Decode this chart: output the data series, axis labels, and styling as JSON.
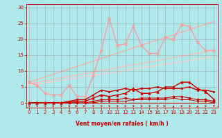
{
  "xlabel": "Vent moyen/en rafales ( km/h )",
  "bg_color": "#aee8e8",
  "grid_color": "#999999",
  "x_ticks": [
    0,
    1,
    2,
    3,
    4,
    5,
    6,
    7,
    8,
    9,
    10,
    11,
    12,
    13,
    14,
    15,
    16,
    17,
    18,
    19,
    20,
    21,
    22,
    23
  ],
  "y_ticks": [
    0,
    5,
    10,
    15,
    20,
    25,
    30
  ],
  "xlim": [
    -0.3,
    23.5
  ],
  "ylim": [
    -1.5,
    31
  ],
  "diag1": {
    "x": [
      0,
      23
    ],
    "y": [
      6.5,
      25.5
    ],
    "color": "#ffaaaa",
    "lw": 0.9
  },
  "diag2": {
    "x": [
      0,
      23
    ],
    "y": [
      6.0,
      16.5
    ],
    "color": "#ffbbbb",
    "lw": 0.9
  },
  "diag3": {
    "x": [
      0,
      23
    ],
    "y": [
      5.5,
      14.5
    ],
    "color": "#ffcccc",
    "lw": 0.9
  },
  "line_rafales": {
    "x": [
      0,
      1,
      2,
      3,
      4,
      5,
      6,
      7,
      8,
      9,
      10,
      11,
      12,
      13,
      14,
      15,
      16,
      17,
      18,
      19,
      20,
      21,
      22,
      23
    ],
    "y": [
      6.5,
      5.5,
      3.0,
      2.5,
      2.5,
      5.5,
      2.0,
      2.0,
      8.5,
      16.5,
      26.5,
      18.0,
      18.5,
      24.0,
      18.0,
      15.5,
      15.5,
      20.5,
      20.0,
      24.5,
      24.0,
      19.0,
      16.5,
      16.5
    ],
    "color": "#ff9999",
    "lw": 0.9,
    "marker": "x",
    "ms": 3
  },
  "line_moyen": {
    "x": [
      0,
      1,
      2,
      3,
      4,
      5,
      6,
      7,
      8,
      9,
      10,
      11,
      12,
      13,
      14,
      15,
      16,
      17,
      18,
      19,
      20,
      21,
      22,
      23
    ],
    "y": [
      0.0,
      0.0,
      0.0,
      0.0,
      0.0,
      0.2,
      0.5,
      0.5,
      1.5,
      2.5,
      2.0,
      2.5,
      3.0,
      4.5,
      3.0,
      3.0,
      3.5,
      5.0,
      5.0,
      6.5,
      6.5,
      4.5,
      3.5,
      1.2
    ],
    "color": "#cc0000",
    "lw": 1.0,
    "marker": "^",
    "ms": 2.5
  },
  "line_max": {
    "x": [
      0,
      1,
      2,
      3,
      4,
      5,
      6,
      7,
      8,
      9,
      10,
      11,
      12,
      13,
      14,
      15,
      16,
      17,
      18,
      19,
      20,
      21,
      22,
      23
    ],
    "y": [
      0.0,
      0.0,
      0.0,
      0.0,
      0.0,
      0.5,
      1.0,
      1.0,
      2.5,
      4.0,
      3.5,
      4.0,
      4.5,
      4.0,
      4.5,
      4.5,
      5.0,
      4.5,
      4.5,
      4.5,
      5.0,
      4.0,
      4.0,
      3.5
    ],
    "color": "#cc0000",
    "lw": 1.0,
    "marker": "s",
    "ms": 2.0
  },
  "line_min": {
    "x": [
      0,
      1,
      2,
      3,
      4,
      5,
      6,
      7,
      8,
      9,
      10,
      11,
      12,
      13,
      14,
      15,
      16,
      17,
      18,
      19,
      20,
      21,
      22,
      23
    ],
    "y": [
      0.0,
      0.0,
      0.0,
      0.0,
      0.0,
      0.0,
      0.0,
      0.0,
      0.5,
      1.0,
      1.0,
      1.0,
      1.5,
      1.0,
      1.5,
      1.5,
      1.5,
      1.5,
      2.0,
      2.0,
      1.5,
      1.0,
      1.0,
      0.5
    ],
    "color": "#cc0000",
    "lw": 0.8,
    "marker": "D",
    "ms": 1.8
  },
  "line_flat1": {
    "x": [
      0,
      1,
      2,
      3,
      4,
      5,
      6,
      7,
      8,
      9,
      10,
      11,
      12,
      13,
      14,
      15,
      16,
      17,
      18,
      19,
      20,
      21,
      22,
      23
    ],
    "y": [
      0.0,
      0.0,
      0.0,
      0.0,
      0.0,
      0.0,
      0.0,
      0.0,
      0.0,
      0.5,
      0.5,
      0.5,
      0.5,
      1.0,
      1.0,
      1.0,
      1.0,
      1.0,
      1.5,
      1.0,
      1.0,
      0.5,
      0.5,
      0.0
    ],
    "color": "#cc0000",
    "lw": 0.7,
    "marker": "v",
    "ms": 1.8
  },
  "line_zero": {
    "x": [
      0,
      23
    ],
    "y": [
      0.0,
      0.0
    ],
    "color": "#cc0000",
    "lw": 0.8
  },
  "wind_arrows": {
    "x": [
      0,
      1,
      2,
      3,
      4,
      5,
      6,
      7,
      8,
      9,
      10,
      11,
      12,
      13,
      14,
      15,
      16,
      17,
      18,
      19,
      20,
      21,
      22,
      23
    ],
    "angles_deg": [
      45,
      45,
      45,
      45,
      45,
      45,
      90,
      90,
      45,
      45,
      45,
      45,
      45,
      45,
      45,
      45,
      45,
      90,
      0,
      45,
      45,
      0,
      45,
      200
    ]
  }
}
